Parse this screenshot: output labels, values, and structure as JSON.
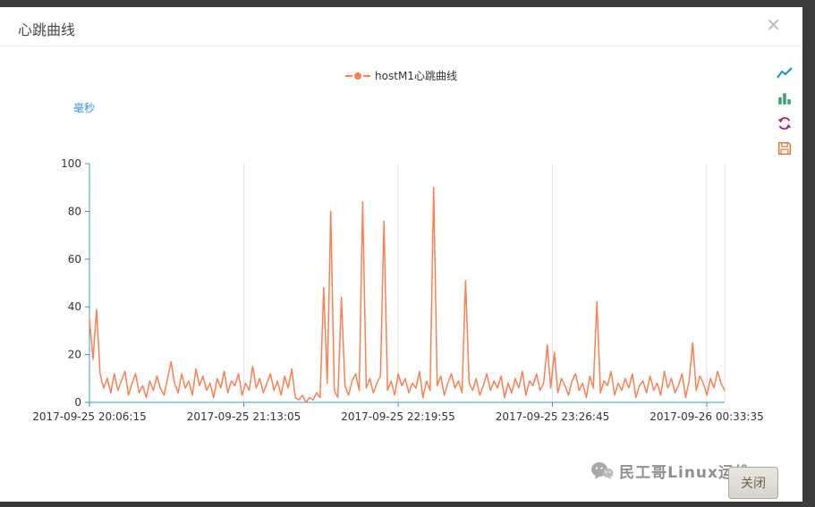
{
  "modal": {
    "title": "心跳曲线",
    "close_icon": "×"
  },
  "legend": {
    "label": "hostM1心跳曲线"
  },
  "toolbox": {
    "line_icon": "switch-to-line-chart",
    "bar_icon": "switch-to-bar-chart",
    "restore_icon": "restore",
    "save_icon": "save-as-image",
    "colors": {
      "line": "#1790cf",
      "bar": "#27a567",
      "restore": "#b01f74",
      "save": "#d9803d"
    }
  },
  "watermark": {
    "text": "民工哥Linux运维"
  },
  "footer": {
    "close_button": "关闭"
  },
  "chart_data": {
    "type": "line",
    "title": "",
    "ylabel": "毫秒",
    "ylim": [
      0,
      100
    ],
    "y_ticks": [
      0,
      20,
      40,
      60,
      80,
      100
    ],
    "x_tick_labels": [
      "2017-09-25 20:06:15",
      "2017-09-25 21:13:05",
      "2017-09-25 22:19:55",
      "2017-09-25 23:26:45",
      "2017-09-26 00:33:35"
    ],
    "grid": "vertical-only",
    "legend_position": "top-center",
    "axis_color": "#3398db",
    "grid_color": "#e3e3e3",
    "tick_label_color": "#333333",
    "series": [
      {
        "name": "hostM1心跳曲线",
        "color": "#ff7f50",
        "values": [
          35,
          18,
          39,
          12,
          6,
          10,
          4,
          12,
          5,
          9,
          13,
          3,
          8,
          12,
          4,
          7,
          2,
          9,
          5,
          11,
          6,
          3,
          10,
          17,
          8,
          4,
          12,
          6,
          9,
          3,
          14,
          7,
          11,
          5,
          8,
          2,
          10,
          6,
          13,
          4,
          9,
          7,
          12,
          3,
          8,
          5,
          15,
          6,
          10,
          4,
          8,
          12,
          5,
          9,
          3,
          11,
          6,
          14,
          2,
          1,
          3,
          0,
          2,
          1,
          4,
          2,
          48,
          8,
          80,
          5,
          2,
          44,
          7,
          3,
          9,
          12,
          5,
          84,
          6,
          10,
          4,
          8,
          11,
          76,
          5,
          9,
          3,
          12,
          7,
          10,
          4,
          8,
          6,
          13,
          2,
          9,
          5,
          90,
          7,
          11,
          3,
          8,
          12,
          6,
          9,
          4,
          51,
          8,
          5,
          10,
          3,
          7,
          12,
          5,
          9,
          6,
          11,
          2,
          8,
          4,
          10,
          6,
          13,
          3,
          9,
          7,
          12,
          5,
          8,
          24,
          6,
          21,
          4,
          10,
          7,
          3,
          9,
          12,
          5,
          8,
          2,
          11,
          6,
          42,
          4,
          9,
          7,
          13,
          3,
          8,
          5,
          10,
          6,
          12,
          2,
          7,
          9,
          4,
          11,
          5,
          8,
          3,
          13,
          6,
          10,
          4,
          7,
          12,
          2,
          9,
          25,
          5,
          11,
          8,
          3,
          10,
          6,
          13,
          8,
          5
        ]
      }
    ]
  }
}
